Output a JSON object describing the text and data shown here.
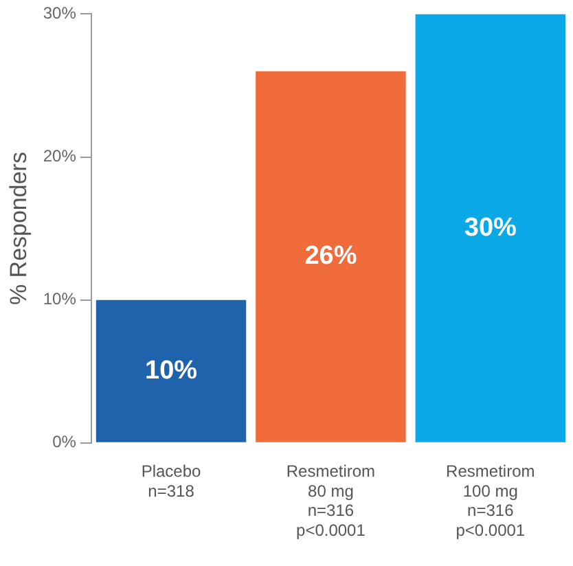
{
  "chart_data": {
    "type": "bar",
    "ylabel": "% Responders",
    "categories": [
      "Placebo\nn=318",
      "Resmetirom\n80 mg\nn=316\np<0.0001",
      "Resmetirom\n100 mg\nn=316\np<0.0001"
    ],
    "values": [
      10,
      26,
      30
    ],
    "colors": [
      "#1f63ad",
      "#ef6c3a",
      "#0aa8e6"
    ],
    "value_labels": [
      "10%",
      "26%",
      "30%"
    ],
    "ylim": [
      0,
      30
    ],
    "yticks": [
      {
        "value": 0,
        "label": "0%"
      },
      {
        "value": 10,
        "label": "10%"
      },
      {
        "value": 20,
        "label": "20%"
      },
      {
        "value": 30,
        "label": "30%"
      }
    ],
    "grid": false,
    "legend": false
  }
}
